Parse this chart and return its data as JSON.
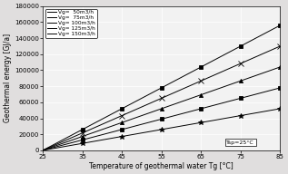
{
  "xlabel": "Temperature of geothermal water Tg [°C]",
  "ylabel": "Geothermal energy [GJ/a]",
  "annotation": "Tsp=25°C",
  "x_start": 25,
  "x_end": 85,
  "Tsp": 25,
  "flow_rates": [
    50,
    75,
    100,
    125,
    150
  ],
  "legend_labels": [
    "Vg=  50m3/h",
    "Vg=  75m3/h",
    "Vg= 100m3/h",
    "Vg= 125m3/h",
    "Vg= 150m3/h"
  ],
  "markers": [
    "*",
    "s",
    "^",
    "x",
    "s"
  ],
  "marker_sizes": [
    4,
    3,
    4,
    5,
    3
  ],
  "xlim": [
    25,
    85
  ],
  "ylim": [
    0,
    180000
  ],
  "xticks": [
    25,
    35,
    45,
    55,
    65,
    75,
    85
  ],
  "yticks": [
    0,
    20000,
    40000,
    60000,
    80000,
    100000,
    120000,
    140000,
    160000,
    180000
  ],
  "scale_factor": 17.44,
  "background_color": "#f2f2f2",
  "fig_facecolor": "#e0dede",
  "linewidth": 0.7,
  "grid_color": "#ffffff",
  "tick_fontsize": 5,
  "label_fontsize": 5.5,
  "legend_fontsize": 4.2
}
